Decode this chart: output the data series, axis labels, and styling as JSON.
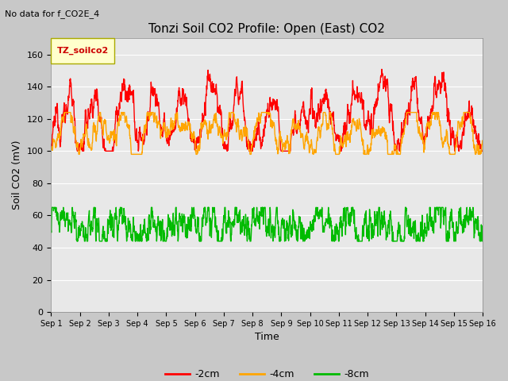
{
  "title": "Tonzi Soil CO2 Profile: Open (East) CO2",
  "no_data_label": "No data for f_CO2E_4",
  "ylabel": "Soil CO2 (mV)",
  "xlabel": "Time",
  "legend_label": "TZ_soilco2",
  "ylim": [
    0,
    170
  ],
  "yticks": [
    0,
    20,
    40,
    60,
    80,
    100,
    120,
    140,
    160
  ],
  "xtick_labels": [
    "Sep 1",
    "Sep 2",
    "Sep 3",
    "Sep 4",
    "Sep 5",
    "Sep 6",
    "Sep 7",
    "Sep 8",
    "Sep 9",
    "Sep 10",
    "Sep 11",
    "Sep 12",
    "Sep 13",
    "Sep 14",
    "Sep 15",
    "Sep 16"
  ],
  "series_labels": [
    "-2cm",
    "-4cm",
    "-8cm"
  ],
  "series_colors": [
    "#ff0000",
    "#ffa500",
    "#00bb00"
  ],
  "background_color": "#c8c8c8",
  "plot_bg_color": "#e8e8e8",
  "legend_box_color": "#ffffcc",
  "legend_box_edge": "#aaaa00",
  "n_points": 2160,
  "days": 15,
  "line_width": 1.0
}
